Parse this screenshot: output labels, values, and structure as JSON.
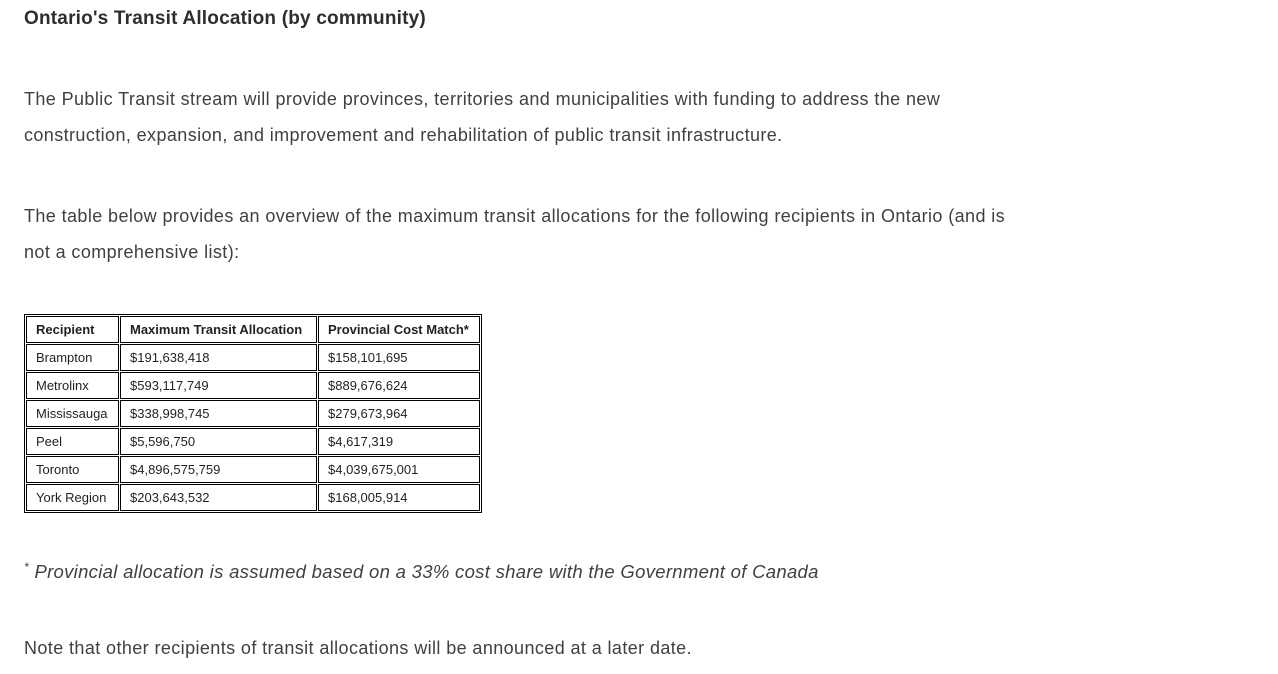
{
  "page": {
    "title": "Ontario's Transit Allocation (by community)",
    "paragraphs": [
      "The Public Transit stream will provide provinces, territories and municipalities with funding to address the new\nconstruction, expansion, and improvement and rehabilitation of public transit infrastructure.",
      "The table below provides an overview of the maximum transit allocations for the following recipients in Ontario (and is\nnot a comprehensive list):"
    ],
    "footnote_marker": "*",
    "footnote_text": "Provincial allocation is assumed based on a 33% cost share with the Government of Canada",
    "note": "Note that other recipients of transit allocations will be announced at a later date."
  },
  "table": {
    "headers": [
      "Recipient",
      "Maximum Transit Allocation",
      "Provincial Cost Match*"
    ],
    "rows": [
      [
        "Brampton",
        "$191,638,418",
        "$158,101,695"
      ],
      [
        "Metrolinx",
        "$593,117,749",
        "$889,676,624"
      ],
      [
        "Mississauga",
        "$338,998,745",
        "$279,673,964"
      ],
      [
        "Peel",
        "$5,596,750",
        "$4,617,319"
      ],
      [
        "Toronto",
        "$4,896,575,759",
        "$4,039,675,001"
      ],
      [
        "York Region",
        "$203,643,532",
        "$168,005,914"
      ]
    ]
  },
  "colors": {
    "background": "#ffffff",
    "body_text": "#3e4044",
    "heading_text": "#2d2e31",
    "table_text": "#1f2022",
    "table_border": "#000000"
  }
}
